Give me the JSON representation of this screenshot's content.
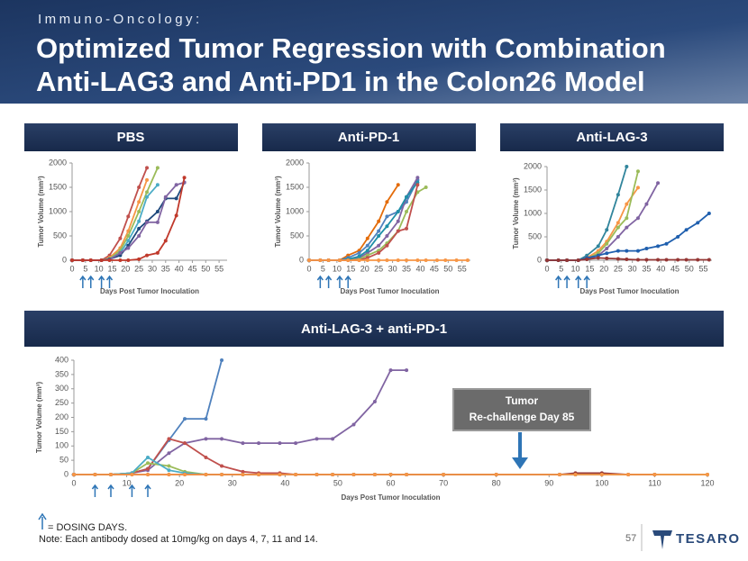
{
  "header": {
    "kicker": "Immuno-Oncology:",
    "title_lines": [
      "Optimized Tumor Regression with Combination",
      "Anti-LAG3 and Anti-PD1 in the Colon26 Model"
    ]
  },
  "chart_data": [
    {
      "type": "line",
      "title": "PBS",
      "x_label": "Days Post Tumor Inoculation",
      "y_label": "Tumor Volume (mm³)",
      "x": [
        0,
        4,
        7,
        11,
        14,
        18,
        21,
        25,
        28,
        32,
        35,
        39,
        42,
        46,
        49,
        53,
        57
      ],
      "xlim": [
        0,
        58
      ],
      "ylim": [
        0,
        2000
      ],
      "xticks": [
        0,
        5,
        10,
        15,
        20,
        25,
        30,
        35,
        40,
        45,
        50,
        55
      ],
      "yticks": [
        0,
        500,
        1000,
        1500,
        2000
      ],
      "dosing_days": [
        4,
        7,
        11,
        14
      ],
      "series": [
        {
          "color": "#c0504d",
          "values": [
            0,
            0,
            0,
            0,
            100,
            450,
            900,
            1500,
            1900,
            null,
            null,
            null,
            null,
            null,
            null,
            null,
            null
          ]
        },
        {
          "color": "#f79646",
          "values": [
            0,
            0,
            0,
            0,
            50,
            250,
            600,
            1200,
            1650,
            null,
            null,
            null,
            null,
            null,
            null,
            null,
            null
          ]
        },
        {
          "color": "#9bbb59",
          "values": [
            0,
            0,
            0,
            0,
            30,
            200,
            500,
            1000,
            1400,
            1900,
            null,
            null,
            null,
            null,
            null,
            null,
            null
          ]
        },
        {
          "color": "#4bacc6",
          "values": [
            0,
            0,
            0,
            0,
            20,
            150,
            400,
            800,
            1300,
            1550,
            null,
            null,
            null,
            null,
            null,
            null,
            null
          ]
        },
        {
          "color": "#1f497d",
          "values": [
            0,
            0,
            0,
            0,
            20,
            100,
            300,
            650,
            800,
            1000,
            1270,
            1270,
            1600,
            null,
            null,
            null,
            null
          ]
        },
        {
          "color": "#8064a2",
          "values": [
            0,
            0,
            0,
            0,
            10,
            150,
            250,
            500,
            780,
            780,
            1300,
            1550,
            1600,
            null,
            null,
            null,
            null
          ]
        },
        {
          "color": "#c0392b",
          "values": [
            0,
            0,
            0,
            0,
            0,
            0,
            0,
            20,
            100,
            150,
            400,
            920,
            1700,
            null,
            null,
            null,
            null
          ]
        }
      ]
    },
    {
      "type": "line",
      "title": "Anti-PD-1",
      "x_label": "Days Post Tumor Inoculation",
      "y_label": "Tumor Volume (mm³)",
      "x": [
        0,
        4,
        7,
        11,
        14,
        18,
        21,
        25,
        28,
        32,
        35,
        39,
        42,
        46,
        49,
        53,
        57
      ],
      "xlim": [
        0,
        58
      ],
      "ylim": [
        0,
        2000
      ],
      "xticks": [
        0,
        5,
        10,
        15,
        20,
        25,
        30,
        35,
        40,
        45,
        50,
        55
      ],
      "yticks": [
        0,
        500,
        1000,
        1500,
        2000
      ],
      "dosing_days": [
        4,
        7,
        11,
        14
      ],
      "series": [
        {
          "color": "#e46c0a",
          "values": [
            0,
            0,
            0,
            0,
            100,
            200,
            450,
            800,
            1200,
            1550,
            null,
            null,
            null,
            null,
            null,
            null,
            null
          ]
        },
        {
          "color": "#4f81bd",
          "values": [
            0,
            0,
            0,
            0,
            50,
            150,
            300,
            600,
            900,
            1000,
            1200,
            1650,
            null,
            null,
            null,
            null,
            null
          ]
        },
        {
          "color": "#8064a2",
          "values": [
            0,
            0,
            0,
            0,
            0,
            50,
            150,
            300,
            500,
            800,
            1300,
            1700,
            null,
            null,
            null,
            null,
            null
          ]
        },
        {
          "color": "#9bbb59",
          "values": [
            0,
            0,
            0,
            0,
            0,
            20,
            100,
            200,
            350,
            600,
            1000,
            1400,
            1500,
            null,
            null,
            null,
            null
          ]
        },
        {
          "color": "#1f8fa8",
          "values": [
            0,
            0,
            0,
            0,
            20,
            80,
            200,
            500,
            700,
            1000,
            1300,
            1600,
            null,
            null,
            null,
            null,
            null
          ]
        },
        {
          "color": "#c0504d",
          "values": [
            0,
            0,
            0,
            0,
            0,
            0,
            50,
            150,
            300,
            600,
            650,
            1550,
            null,
            null,
            null,
            null,
            null
          ]
        },
        {
          "color": "#f79646",
          "values": [
            0,
            0,
            0,
            0,
            0,
            0,
            0,
            0,
            0,
            0,
            0,
            0,
            0,
            0,
            0,
            0,
            0
          ]
        }
      ]
    },
    {
      "type": "line",
      "title": "Anti-LAG-3",
      "x_label": "Days Post Tumor Inoculation",
      "y_label": "Tumor Volume (mm³)",
      "x": [
        0,
        4,
        7,
        11,
        14,
        18,
        21,
        25,
        28,
        32,
        35,
        39,
        42,
        46,
        49,
        53,
        57
      ],
      "xlim": [
        0,
        58
      ],
      "ylim": [
        0,
        2000
      ],
      "xticks": [
        0,
        5,
        10,
        15,
        20,
        25,
        30,
        35,
        40,
        45,
        50,
        55
      ],
      "yticks": [
        0,
        500,
        1000,
        1500,
        2000
      ],
      "dosing_days": [
        4,
        7,
        11,
        14
      ],
      "series": [
        {
          "color": "#31859c",
          "values": [
            0,
            0,
            0,
            0,
            100,
            300,
            650,
            1400,
            2000,
            null,
            null,
            null,
            null,
            null,
            null,
            null,
            null
          ]
        },
        {
          "color": "#f79646",
          "values": [
            0,
            0,
            0,
            0,
            50,
            200,
            400,
            800,
            1200,
            1550,
            null,
            null,
            null,
            null,
            null,
            null,
            null
          ]
        },
        {
          "color": "#9bbb59",
          "values": [
            0,
            0,
            0,
            0,
            30,
            150,
            350,
            700,
            900,
            1900,
            null,
            null,
            null,
            null,
            null,
            null,
            null
          ]
        },
        {
          "color": "#8064a2",
          "values": [
            0,
            0,
            0,
            0,
            20,
            100,
            250,
            500,
            700,
            900,
            1200,
            1650,
            null,
            null,
            null,
            null,
            null
          ]
        },
        {
          "color": "#1f5fae",
          "values": [
            0,
            0,
            0,
            0,
            50,
            100,
            150,
            200,
            200,
            200,
            250,
            300,
            350,
            500,
            650,
            800,
            1000
          ]
        },
        {
          "color": "#953735",
          "values": [
            0,
            0,
            0,
            0,
            20,
            50,
            40,
            30,
            20,
            10,
            10,
            10,
            10,
            10,
            10,
            10,
            10
          ]
        }
      ]
    },
    {
      "type": "line",
      "title": "Anti-LAG-3 + anti-PD-1",
      "x_label": "Days Post Tumor Inoculation",
      "y_label": "Tumor Volume (mm³)",
      "x": [
        0,
        4,
        7,
        11,
        14,
        18,
        21,
        25,
        28,
        32,
        35,
        39,
        42,
        46,
        49,
        53,
        57,
        60,
        63,
        70,
        80,
        92,
        95,
        100,
        105,
        110,
        120
      ],
      "xlim": [
        0,
        120
      ],
      "ylim": [
        0,
        400
      ],
      "xticks": [
        0,
        10,
        20,
        30,
        40,
        50,
        60,
        70,
        80,
        90,
        100,
        110,
        120
      ],
      "yticks": [
        0,
        50,
        100,
        150,
        200,
        250,
        300,
        350,
        400
      ],
      "dosing_days": [
        4,
        7,
        11,
        14
      ],
      "annotation": [
        "Tumor",
        "Re-challenge Day 85"
      ],
      "series": [
        {
          "color": "#4f81bd",
          "values": [
            0,
            0,
            0,
            5,
            20,
            120,
            195,
            195,
            400,
            null,
            null,
            null,
            null,
            null,
            null,
            null,
            null,
            null,
            null,
            null,
            null,
            null,
            null,
            null,
            null,
            null,
            null
          ]
        },
        {
          "color": "#8064a2",
          "values": [
            0,
            0,
            0,
            5,
            15,
            75,
            110,
            125,
            125,
            110,
            110,
            110,
            110,
            125,
            125,
            175,
            255,
            365,
            365,
            null,
            null,
            null,
            null,
            null,
            null,
            null,
            null
          ]
        },
        {
          "color": "#c0504d",
          "values": [
            0,
            0,
            0,
            5,
            20,
            125,
            110,
            60,
            30,
            10,
            5,
            5,
            0,
            0,
            0,
            0,
            0,
            0,
            0,
            0,
            0,
            0,
            0,
            0,
            0,
            0,
            0
          ]
        },
        {
          "color": "#9bbb59",
          "values": [
            0,
            0,
            0,
            5,
            40,
            30,
            10,
            0,
            0,
            0,
            0,
            0,
            0,
            0,
            0,
            0,
            0,
            0,
            0,
            0,
            0,
            0,
            0,
            0,
            0,
            0,
            0
          ]
        },
        {
          "color": "#4bacc6",
          "values": [
            0,
            0,
            0,
            5,
            60,
            15,
            5,
            0,
            0,
            0,
            0,
            0,
            0,
            0,
            0,
            0,
            0,
            0,
            0,
            0,
            0,
            0,
            0,
            0,
            null,
            null,
            null
          ]
        },
        {
          "color": "#953735",
          "values": [
            0,
            0,
            0,
            0,
            0,
            0,
            0,
            0,
            0,
            0,
            0,
            0,
            0,
            0,
            0,
            0,
            0,
            0,
            0,
            0,
            0,
            0,
            5,
            5,
            0,
            0,
            null
          ]
        },
        {
          "color": "#f79646",
          "values": [
            0,
            0,
            0,
            0,
            0,
            0,
            0,
            0,
            0,
            0,
            0,
            0,
            0,
            0,
            0,
            0,
            0,
            0,
            0,
            0,
            0,
            0,
            0,
            0,
            0,
            0,
            0
          ]
        }
      ]
    }
  ],
  "footer": {
    "legend": "= DOSING DAYS.",
    "note": "Note: Each antibody dosed at 10mg/kg on  days 4, 7, 11 and 14.",
    "page": "57",
    "logo": "TESARO"
  }
}
